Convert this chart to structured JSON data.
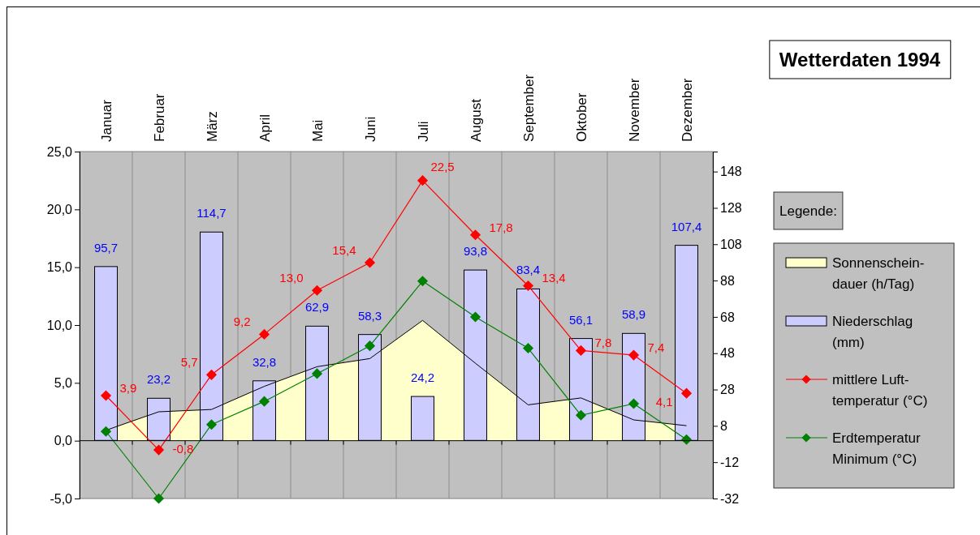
{
  "chart_data": {
    "type": "bar",
    "title": "Wetterdaten 1994",
    "legend_title": "Legende:",
    "categories": [
      "Januar",
      "Februar",
      "März",
      "April",
      "Mai",
      "Juni",
      "Juli",
      "August",
      "September",
      "Oktober",
      "November",
      "Dezember"
    ],
    "series": [
      {
        "type": "area",
        "name": "Sonnenschein-dauer (h/Tag)",
        "color": "#ffffcc",
        "values": [
          0.9,
          2.5,
          2.7,
          4.7,
          6.4,
          7.1,
          10.4,
          6.7,
          3.1,
          3.7,
          1.8,
          1.3
        ]
      },
      {
        "axis": "y2",
        "name": "Niederschlag (mm)",
        "color": "#ccccff",
        "values": [
          95.7,
          23.2,
          114.7,
          32.8,
          62.9,
          58.3,
          24.2,
          93.8,
          83.4,
          56.1,
          58.9,
          107.4
        ],
        "value_labels": [
          "95,7",
          "23,2",
          "114,7",
          "32,8",
          "62,9",
          "58,3",
          "24,2",
          "93,8",
          "83,4",
          "56,1",
          "58,9",
          "107,4"
        ]
      },
      {
        "type": "line",
        "marker": "diamond",
        "name": "mittlere Luft-temperatur (°C)",
        "color": "#ff0000",
        "values": [
          3.9,
          -0.8,
          5.7,
          9.2,
          13.0,
          15.4,
          22.5,
          17.8,
          13.4,
          7.8,
          7.4,
          4.1
        ],
        "value_labels": [
          "3,9",
          "-0,8",
          "5,7",
          "9,2",
          "13,0",
          "15,4",
          "22,5",
          "17,8",
          "13,4",
          "7,8",
          "7,4",
          "4,1"
        ]
      },
      {
        "type": "line",
        "marker": "diamond",
        "name": "Erdtemperatur Minimum (°C)",
        "color": "#008000",
        "values": [
          0.8,
          -5.0,
          1.4,
          3.4,
          5.8,
          8.2,
          13.8,
          10.7,
          8.0,
          2.2,
          3.2,
          0.1
        ]
      }
    ],
    "ylim": [
      -5,
      25
    ],
    "yticks": [
      {
        "value": -5,
        "label": "-5,0"
      },
      {
        "value": 0,
        "label": "0,0"
      },
      {
        "value": 5,
        "label": "5,0"
      },
      {
        "value": 10,
        "label": "10,0"
      },
      {
        "value": 15,
        "label": "15,0"
      },
      {
        "value": 20,
        "label": "20,0"
      },
      {
        "value": 25,
        "label": "25,0"
      }
    ],
    "y2lim": [
      -32,
      159
    ],
    "y2ticks": [
      -32,
      -12,
      8,
      28,
      48,
      68,
      88,
      108,
      128,
      148
    ],
    "grid": "x",
    "legend": "right"
  }
}
